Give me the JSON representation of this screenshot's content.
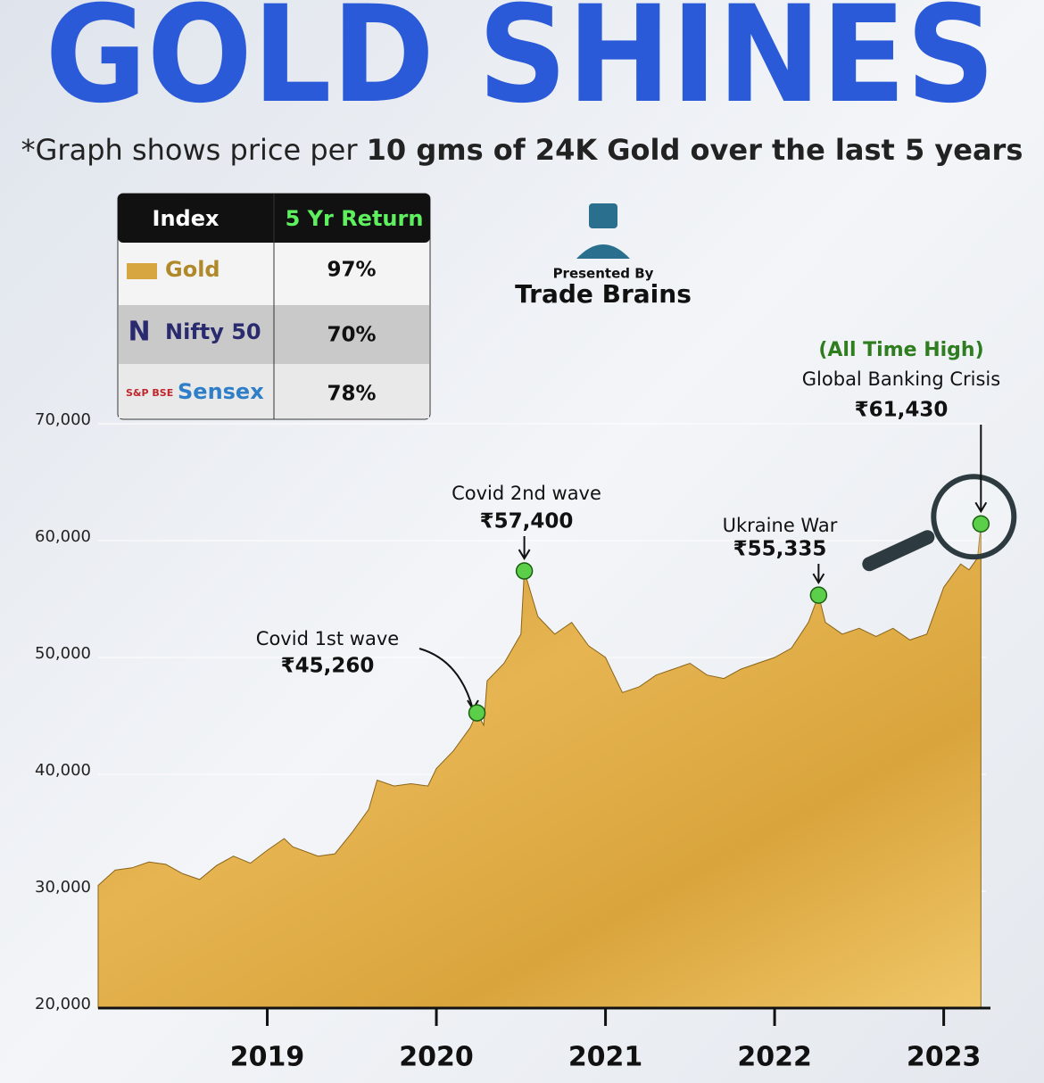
{
  "chart_data": {
    "type": "area",
    "title": "GOLD SHINES",
    "subtitle": [
      "*Graph shows price per",
      "10 gms of 24K Gold over the last 5 years"
    ],
    "x": [
      2018.0,
      2018.1,
      2018.2,
      2018.3,
      2018.4,
      2018.5,
      2018.6,
      2018.7,
      2018.8,
      2018.9,
      2019.0,
      2019.1,
      2019.15,
      2019.3,
      2019.4,
      2019.5,
      2019.6,
      2019.65,
      2019.75,
      2019.85,
      2019.95,
      2020.0,
      2020.1,
      2020.2,
      2020.24,
      2020.28,
      2020.3,
      2020.4,
      2020.5,
      2020.52,
      2020.6,
      2020.7,
      2020.8,
      2020.9,
      2021.0,
      2021.05,
      2021.1,
      2021.2,
      2021.3,
      2021.4,
      2021.5,
      2021.6,
      2021.7,
      2021.8,
      2021.9,
      2022.0,
      2022.1,
      2022.2,
      2022.26,
      2022.3,
      2022.4,
      2022.5,
      2022.6,
      2022.7,
      2022.8,
      2022.9,
      2023.0,
      2023.1,
      2023.15,
      2023.2,
      2023.22
    ],
    "values": [
      30500,
      31800,
      32000,
      32500,
      32300,
      31500,
      31000,
      32200,
      33000,
      32400,
      33500,
      34500,
      33800,
      33000,
      33200,
      35000,
      37000,
      39500,
      39000,
      39200,
      39000,
      40500,
      42000,
      44000,
      45260,
      44200,
      48000,
      49500,
      52000,
      57400,
      53500,
      52000,
      53000,
      51000,
      50000,
      48500,
      47000,
      47500,
      48500,
      49000,
      49500,
      48500,
      48200,
      49000,
      49500,
      50000,
      50800,
      53000,
      55335,
      53000,
      52000,
      52500,
      51800,
      52500,
      51500,
      52000,
      56000,
      58000,
      57500,
      58500,
      61430
    ],
    "color": "#d9a43c",
    "xlim": [
      2018.0,
      2023.25
    ],
    "xticks": [
      2019,
      2020,
      2021,
      2022,
      2023
    ],
    "ylim": [
      20000,
      70000
    ],
    "yticks": [
      {
        "value": 20000,
        "label": "20,000"
      },
      {
        "value": 30000,
        "label": "30,000"
      },
      {
        "value": 40000,
        "label": "40,000"
      },
      {
        "value": 50000,
        "label": "50,000"
      },
      {
        "value": 60000,
        "label": "60,000"
      },
      {
        "value": 70000,
        "label": "70,000"
      }
    ],
    "grid": true,
    "annotations": [
      {
        "label": "Covid 1st wave",
        "x": 2020.24,
        "value": 45260,
        "value_label": "₹45,260"
      },
      {
        "label": "Covid 2nd wave",
        "x": 2020.52,
        "value": 57400,
        "value_label": "₹57,400"
      },
      {
        "label": "Ukraine War",
        "x": 2022.26,
        "value": 55335,
        "value_label": "₹55,335"
      },
      {
        "note": "(All Time High)",
        "label": "Global Banking Crisis",
        "x": 2023.22,
        "value": 61430,
        "value_label": "₹61,430"
      }
    ]
  },
  "table": {
    "header": [
      "Index",
      "5 Yr Return"
    ],
    "rows": [
      [
        "Gold",
        "97%"
      ],
      [
        "Nifty 50",
        "70%"
      ],
      [
        "Sensex",
        "78%"
      ]
    ],
    "logo_text": "S&P BSE"
  },
  "branding": {
    "presented_by": "Presented By",
    "name": "Trade Brains"
  }
}
